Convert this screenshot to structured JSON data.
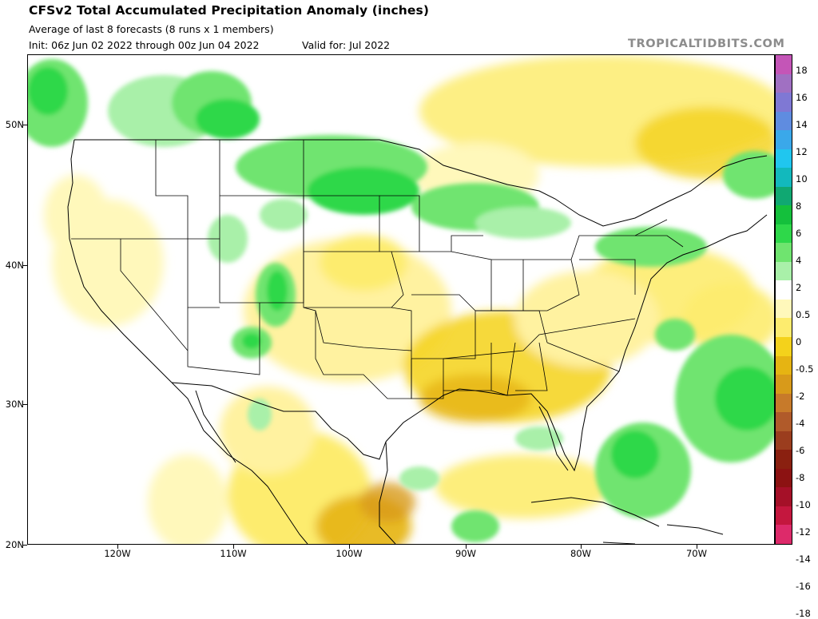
{
  "header": {
    "title": "CFSv2 Total Accumulated Precipitation Anomaly (inches)",
    "subtitle": "Average of last 8 forecasts (8 runs x 1 members)",
    "init": "Init: 06z Jun 02 2022 through 00z Jun 04 2022",
    "valid": "Valid for: Jul 2022",
    "watermark": "TROPICALTIDBITS.COM"
  },
  "map": {
    "region": "Continental United States",
    "lat_labels": [
      "50N",
      "40N",
      "30N",
      "20N"
    ],
    "lon_labels": [
      "120W",
      "110W",
      "100W",
      "90W",
      "80W",
      "70W"
    ]
  },
  "colorbar": {
    "labels": [
      "18",
      "16",
      "14",
      "12",
      "10",
      "8",
      "6",
      "4",
      "2",
      "0.5",
      "0",
      "-0.5",
      "-2",
      "-4",
      "-6",
      "-8",
      "-10",
      "-12",
      "-14",
      "-16",
      "-18"
    ],
    "colors": [
      "#c455b7",
      "#a070c2",
      "#7f78d4",
      "#5f8ce0",
      "#3aa8ea",
      "#20c6ef",
      "#12b9bd",
      "#10a872",
      "#14c03c",
      "#2ed84a",
      "#6fe46f",
      "#a9f0a9",
      "#ffffff",
      "#fff8bb",
      "#fdec6e",
      "#f4d21b",
      "#e6b412",
      "#d89a1a",
      "#c77a2a",
      "#b05a2a",
      "#9b3d1e",
      "#8a2010",
      "#8c1212",
      "#a51028",
      "#c4173e",
      "#dd2a6a"
    ]
  }
}
